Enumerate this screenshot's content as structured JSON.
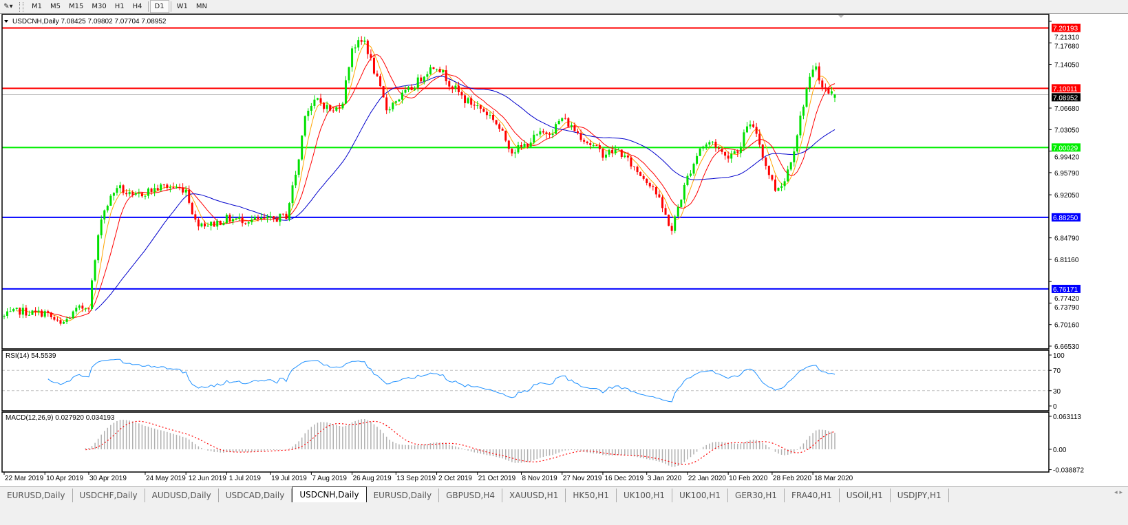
{
  "toolbar": {
    "timeframes": [
      "M1",
      "M5",
      "M15",
      "M30",
      "H1",
      "H4",
      "D1",
      "W1",
      "MN"
    ],
    "active_timeframe": "D1"
  },
  "chart": {
    "header": "USDCNH,Daily  7.08425 7.09802 7.07704 7.08952",
    "price_ticks": [
      "7.21310",
      "7.17680",
      "7.14050",
      "7.06680",
      "7.03050",
      "6.99420",
      "6.95790",
      "6.92050",
      "6.84790",
      "6.81160",
      "6.77420",
      "6.73790",
      "6.70160",
      "6.66530"
    ],
    "levels": [
      {
        "price": 7.20193,
        "label": "7.20193",
        "color": "#ff0000"
      },
      {
        "price": 7.10011,
        "label": "7.10011",
        "color": "#ff0000"
      },
      {
        "price": 7.00029,
        "label": "7.00029",
        "color": "#00ee00"
      },
      {
        "price": 6.8825,
        "label": "6.88250",
        "color": "#0000ff"
      },
      {
        "price": 6.76171,
        "label": "6.76171",
        "color": "#0000ff"
      }
    ],
    "current_price": {
      "price": 7.08952,
      "label": "7.08952"
    },
    "colors": {
      "bull": "#00e000",
      "bear": "#ff0000",
      "ma_fast": "#ffa500",
      "ma_mid": "#ff0000",
      "ma_slow": "#0000cc",
      "rsi": "#1e90ff",
      "macd_hist": "#b0b0b0",
      "macd_signal": "#ff0000"
    }
  },
  "rsi": {
    "label": "RSI(14) 54.5539",
    "ticks": [
      "100",
      "70",
      "30",
      "0"
    ]
  },
  "macd": {
    "label": "MACD(12,26,9) 0.027920 0.034193",
    "ticks": [
      "0.063113",
      "0.00",
      "-0.038872"
    ]
  },
  "chart_data": {
    "type": "candlestick",
    "symbol": "USDCNH",
    "timeframe": "Daily",
    "ylim": [
      6.6653,
      7.2131
    ],
    "anchor_closes": [
      [
        "2019-03-22",
        6.715
      ],
      [
        "2019-03-29",
        6.725
      ],
      [
        "2019-04-05",
        6.72
      ],
      [
        "2019-04-10",
        6.722
      ],
      [
        "2019-04-17",
        6.7
      ],
      [
        "2019-04-24",
        6.725
      ],
      [
        "2019-04-30",
        6.735
      ],
      [
        "2019-05-06",
        6.885
      ],
      [
        "2019-05-13",
        6.935
      ],
      [
        "2019-05-20",
        6.915
      ],
      [
        "2019-05-24",
        6.925
      ],
      [
        "2019-06-03",
        6.935
      ],
      [
        "2019-06-12",
        6.93
      ],
      [
        "2019-06-17",
        6.875
      ],
      [
        "2019-06-24",
        6.87
      ],
      [
        "2019-07-01",
        6.88
      ],
      [
        "2019-07-10",
        6.878
      ],
      [
        "2019-07-19",
        6.878
      ],
      [
        "2019-07-26",
        6.885
      ],
      [
        "2019-08-01",
        6.98
      ],
      [
        "2019-08-05",
        7.06
      ],
      [
        "2019-08-09",
        7.08
      ],
      [
        "2019-08-16",
        7.06
      ],
      [
        "2019-08-21",
        7.08
      ],
      [
        "2019-08-26",
        7.17
      ],
      [
        "2019-08-30",
        7.18
      ],
      [
        "2019-09-04",
        7.13
      ],
      [
        "2019-09-10",
        7.065
      ],
      [
        "2019-09-13",
        7.08
      ],
      [
        "2019-09-20",
        7.1
      ],
      [
        "2019-09-27",
        7.13
      ],
      [
        "2019-10-02",
        7.14
      ],
      [
        "2019-10-08",
        7.11
      ],
      [
        "2019-10-15",
        7.08
      ],
      [
        "2019-10-21",
        7.07
      ],
      [
        "2019-10-28",
        7.05
      ],
      [
        "2019-11-05",
        6.995
      ],
      [
        "2019-11-08",
        7.0
      ],
      [
        "2019-11-15",
        7.02
      ],
      [
        "2019-11-22",
        7.03
      ],
      [
        "2019-11-27",
        7.05
      ],
      [
        "2019-12-03",
        7.03
      ],
      [
        "2019-12-09",
        7.01
      ],
      [
        "2019-12-16",
        6.99
      ],
      [
        "2019-12-23",
        6.995
      ],
      [
        "2019-12-31",
        6.96
      ],
      [
        "2020-01-07",
        6.935
      ],
      [
        "2020-01-13",
        6.885
      ],
      [
        "2020-01-15",
        6.86
      ],
      [
        "2020-01-17",
        6.9
      ],
      [
        "2020-01-22",
        6.95
      ],
      [
        "2020-01-28",
        7.0
      ],
      [
        "2020-02-03",
        7.01
      ],
      [
        "2020-02-07",
        6.985
      ],
      [
        "2020-02-14",
        7.0
      ],
      [
        "2020-02-18",
        7.04
      ],
      [
        "2020-02-21",
        7.025
      ],
      [
        "2020-02-26",
        6.97
      ],
      [
        "2020-03-02",
        6.93
      ],
      [
        "2020-03-05",
        6.945
      ],
      [
        "2020-03-10",
        7.0
      ],
      [
        "2020-03-16",
        7.1
      ],
      [
        "2020-03-19",
        7.14
      ],
      [
        "2020-03-23",
        7.1
      ],
      [
        "2020-03-27",
        7.08952
      ]
    ],
    "x_tick_labels": [
      [
        "2019-03-22",
        "22 Mar 2019"
      ],
      [
        "2019-04-10",
        "10 Apr 2019"
      ],
      [
        "2019-04-30",
        "30 Apr 2019"
      ],
      [
        "2019-05-24",
        "24 May 2019"
      ],
      [
        "2019-06-12",
        "12 Jun 2019"
      ],
      [
        "2019-07-01",
        "1 Jul 2019"
      ],
      [
        "2019-07-19",
        "19 Jul 2019"
      ],
      [
        "2019-08-07",
        "7 Aug 2019"
      ],
      [
        "2019-08-26",
        "26 Aug 2019"
      ],
      [
        "2019-09-13",
        "13 Sep 2019"
      ],
      [
        "2019-10-02",
        "2 Oct 2019"
      ],
      [
        "2019-10-21",
        "21 Oct 2019"
      ],
      [
        "2019-11-08",
        "8 Nov 2019"
      ],
      [
        "2019-11-27",
        "27 Nov 2019"
      ],
      [
        "2019-12-16",
        "16 Dec 2019"
      ],
      [
        "2020-01-03",
        "3 Jan 2020"
      ],
      [
        "2020-01-22",
        "22 Jan 2020"
      ],
      [
        "2020-02-10",
        "10 Feb 2020"
      ],
      [
        "2020-02-28",
        "28 Feb 2020"
      ],
      [
        "2020-03-18",
        "18 Mar 2020"
      ]
    ],
    "indicators": [
      "MA fast (orange)",
      "MA (red)",
      "MA slow (blue)",
      "RSI(14)",
      "MACD(12,26,9)"
    ]
  },
  "tabs": {
    "items": [
      "EURUSD,Daily",
      "USDCHF,Daily",
      "AUDUSD,Daily",
      "USDCAD,Daily",
      "USDCNH,Daily",
      "EURUSD,Daily",
      "GBPUSD,H4",
      "XAUUSD,H1",
      "HK50,H1",
      "UK100,H1",
      "UK100,H1",
      "GER30,H1",
      "FRA40,H1",
      "USOil,H1",
      "USDJPY,H1"
    ],
    "active": 4,
    "scroll": "◂ ▸"
  }
}
